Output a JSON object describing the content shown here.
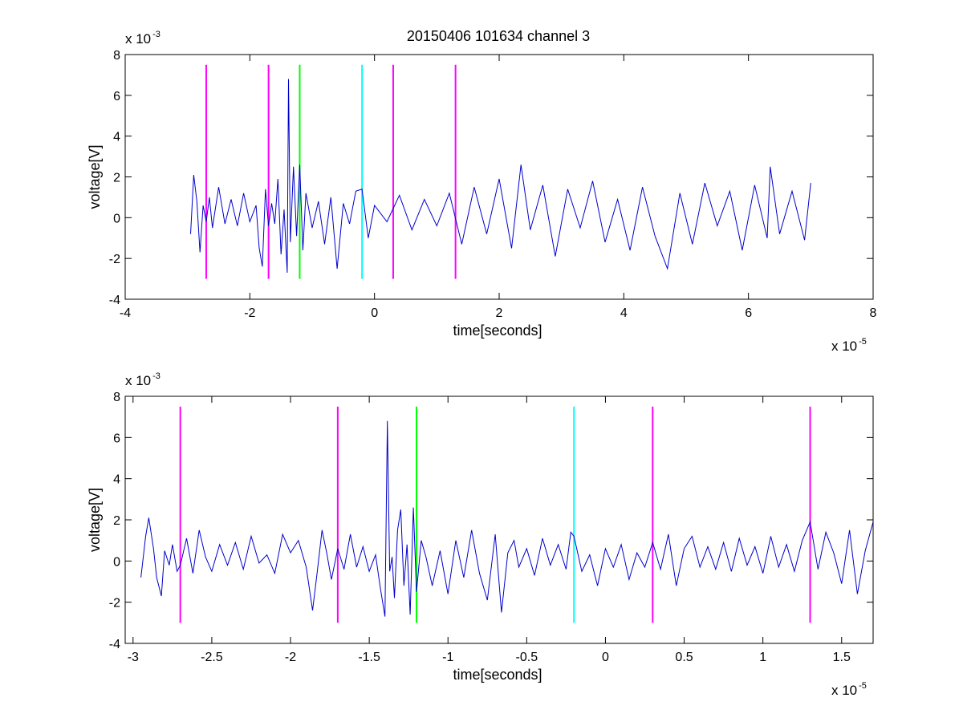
{
  "figure": {
    "title": "20150406 101634 channel 3"
  },
  "chart_data": [
    {
      "type": "line",
      "title": "20150406 101634 channel 3",
      "xlabel": "time[seconds]",
      "ylabel": "voltage[V]",
      "x_exponent_label": "x 10",
      "x_exponent_power": "-5",
      "y_exponent_label": "x 10",
      "y_exponent_power": "-3",
      "xlim": [
        -4,
        8
      ],
      "ylim": [
        -4,
        8
      ],
      "x_ticks": [
        -4,
        -2,
        0,
        2,
        4,
        6,
        8
      ],
      "x_tick_labels": [
        "-4",
        "-2",
        "0",
        "2",
        "4",
        "6",
        "8"
      ],
      "y_ticks": [
        -4,
        -2,
        0,
        2,
        4,
        6,
        8
      ],
      "y_tick_labels": [
        "-4",
        "-2",
        "0",
        "2",
        "4",
        "6",
        "8"
      ],
      "grid": false,
      "trace_color": "#0000cc",
      "series": [
        {
          "x": [
            -2.95,
            -2.9,
            -2.85,
            -2.8,
            -2.75,
            -2.7,
            -2.65,
            -2.6,
            -2.5,
            -2.4,
            -2.3,
            -2.2,
            -2.1,
            -2.0,
            -1.9,
            -1.85,
            -1.8,
            -1.75,
            -1.7,
            -1.65,
            -1.6,
            -1.55,
            -1.5,
            -1.45,
            -1.4,
            -1.38,
            -1.35,
            -1.3,
            -1.25,
            -1.2,
            -1.15,
            -1.1,
            -1.0,
            -0.9,
            -0.8,
            -0.7,
            -0.6,
            -0.5,
            -0.4,
            -0.3,
            -0.2,
            -0.1,
            0.0,
            0.2,
            0.4,
            0.6,
            0.8,
            1.0,
            1.2,
            1.4,
            1.6,
            1.8,
            2.0,
            2.2,
            2.35,
            2.5,
            2.7,
            2.9,
            3.1,
            3.3,
            3.5,
            3.7,
            3.9,
            4.1,
            4.3,
            4.5,
            4.7,
            4.9,
            5.1,
            5.3,
            5.5,
            5.7,
            5.9,
            6.1,
            6.3,
            6.35,
            6.5,
            6.7,
            6.9,
            7.0
          ],
          "y": [
            -0.8,
            2.1,
            0.8,
            -1.7,
            0.6,
            -0.2,
            1.0,
            -0.5,
            1.5,
            -0.3,
            0.9,
            -0.4,
            1.2,
            -0.2,
            0.6,
            -1.5,
            -2.4,
            1.4,
            -0.4,
            0.7,
            -0.3,
            1.9,
            -1.8,
            0.4,
            -2.7,
            6.8,
            -1.2,
            2.5,
            -0.9,
            2.6,
            -1.6,
            1.2,
            -0.5,
            0.8,
            -1.3,
            1.0,
            -2.5,
            0.7,
            -0.3,
            1.3,
            1.4,
            -1.0,
            0.6,
            -0.2,
            1.1,
            -0.6,
            0.9,
            -0.4,
            1.2,
            -1.3,
            1.5,
            -0.8,
            1.9,
            -1.5,
            2.6,
            -0.6,
            1.6,
            -1.9,
            1.4,
            -0.5,
            1.8,
            -1.2,
            0.9,
            -1.6,
            1.5,
            -0.9,
            -2.5,
            1.2,
            -1.3,
            1.7,
            -0.4,
            1.3,
            -1.6,
            1.6,
            -1.0,
            2.5,
            -0.8,
            1.3,
            -1.1,
            1.7
          ]
        }
      ],
      "markers": [
        {
          "x": -2.7,
          "color": "#ff00ff"
        },
        {
          "x": -1.7,
          "color": "#ff00ff"
        },
        {
          "x": -1.2,
          "color": "#00ff00"
        },
        {
          "x": -0.2,
          "color": "#00ffff"
        },
        {
          "x": 0.3,
          "color": "#ff00ff"
        },
        {
          "x": 1.3,
          "color": "#ff00ff"
        }
      ],
      "marker_range": [
        -3,
        7.5
      ]
    },
    {
      "type": "line",
      "title": "",
      "xlabel": "time[seconds]",
      "ylabel": "voltage[V]",
      "x_exponent_label": "x 10",
      "x_exponent_power": "-5",
      "y_exponent_label": "x 10",
      "y_exponent_power": "-3",
      "xlim": [
        -3.05,
        1.7
      ],
      "ylim": [
        -4,
        8
      ],
      "x_ticks": [
        -3,
        -2.5,
        -2,
        -1.5,
        -1,
        -0.5,
        0,
        0.5,
        1,
        1.5
      ],
      "x_tick_labels": [
        "-3",
        "-2.5",
        "-2",
        "-1.5",
        "-1",
        "-0.5",
        "0",
        "0.5",
        "1",
        "1.5"
      ],
      "y_ticks": [
        -4,
        -2,
        0,
        2,
        4,
        6,
        8
      ],
      "y_tick_labels": [
        "-4",
        "-2",
        "0",
        "2",
        "4",
        "6",
        "8"
      ],
      "grid": false,
      "trace_color": "#0000cc",
      "series": [
        {
          "x": [
            -2.95,
            -2.92,
            -2.9,
            -2.87,
            -2.85,
            -2.82,
            -2.8,
            -2.77,
            -2.75,
            -2.72,
            -2.7,
            -2.66,
            -2.62,
            -2.58,
            -2.54,
            -2.5,
            -2.45,
            -2.4,
            -2.35,
            -2.3,
            -2.25,
            -2.2,
            -2.15,
            -2.1,
            -2.05,
            -2.0,
            -1.95,
            -1.9,
            -1.86,
            -1.83,
            -1.8,
            -1.77,
            -1.74,
            -1.7,
            -1.66,
            -1.62,
            -1.58,
            -1.54,
            -1.5,
            -1.46,
            -1.43,
            -1.4,
            -1.385,
            -1.37,
            -1.355,
            -1.34,
            -1.32,
            -1.3,
            -1.28,
            -1.26,
            -1.24,
            -1.22,
            -1.2,
            -1.17,
            -1.14,
            -1.1,
            -1.05,
            -1.0,
            -0.95,
            -0.9,
            -0.85,
            -0.8,
            -0.75,
            -0.7,
            -0.66,
            -0.62,
            -0.58,
            -0.55,
            -0.5,
            -0.45,
            -0.4,
            -0.35,
            -0.3,
            -0.25,
            -0.22,
            -0.2,
            -0.15,
            -0.1,
            -0.05,
            0.0,
            0.05,
            0.1,
            0.15,
            0.2,
            0.25,
            0.3,
            0.35,
            0.4,
            0.45,
            0.5,
            0.55,
            0.6,
            0.65,
            0.7,
            0.75,
            0.8,
            0.85,
            0.9,
            0.95,
            1.0,
            1.05,
            1.1,
            1.15,
            1.2,
            1.25,
            1.3,
            1.35,
            1.4,
            1.45,
            1.5,
            1.55,
            1.6,
            1.65,
            1.7
          ],
          "y": [
            -0.8,
            1.2,
            2.1,
            0.6,
            -0.8,
            -1.7,
            0.5,
            -0.2,
            0.8,
            -0.5,
            -0.2,
            1.1,
            -0.6,
            1.5,
            0.2,
            -0.5,
            0.8,
            -0.2,
            0.9,
            -0.4,
            1.2,
            -0.1,
            0.3,
            -0.6,
            1.3,
            0.4,
            1.0,
            -0.3,
            -2.4,
            -0.5,
            1.5,
            0.4,
            -0.9,
            0.6,
            -0.4,
            1.3,
            -0.3,
            0.7,
            -0.5,
            0.3,
            -1.3,
            -2.7,
            6.8,
            -0.5,
            0.2,
            -1.8,
            1.5,
            2.5,
            -1.2,
            0.8,
            -2.6,
            2.6,
            -1.5,
            1.0,
            0.2,
            -1.2,
            0.5,
            -1.6,
            1.0,
            -0.8,
            1.5,
            -0.6,
            -1.9,
            1.3,
            -2.5,
            0.4,
            1.0,
            -0.3,
            0.6,
            -0.7,
            1.1,
            -0.2,
            0.8,
            -0.4,
            1.4,
            1.2,
            -0.5,
            0.3,
            -1.2,
            0.6,
            -0.3,
            0.8,
            -0.9,
            0.4,
            -0.3,
            0.9,
            -0.4,
            1.3,
            -1.2,
            0.6,
            1.2,
            -0.3,
            0.7,
            -0.4,
            0.9,
            -0.5,
            1.1,
            -0.2,
            0.7,
            -0.6,
            1.2,
            -0.3,
            0.8,
            -0.5,
            1.0,
            1.9,
            -0.4,
            1.4,
            0.4,
            -1.1,
            1.5,
            -1.6,
            0.5,
            1.9
          ]
        }
      ],
      "markers": [
        {
          "x": -2.7,
          "color": "#ff00ff"
        },
        {
          "x": -1.7,
          "color": "#ff00ff"
        },
        {
          "x": -1.2,
          "color": "#00ff00"
        },
        {
          "x": -0.2,
          "color": "#00ffff"
        },
        {
          "x": 0.3,
          "color": "#ff00ff"
        },
        {
          "x": 1.3,
          "color": "#ff00ff"
        }
      ],
      "marker_range": [
        -3,
        7.5
      ]
    }
  ]
}
